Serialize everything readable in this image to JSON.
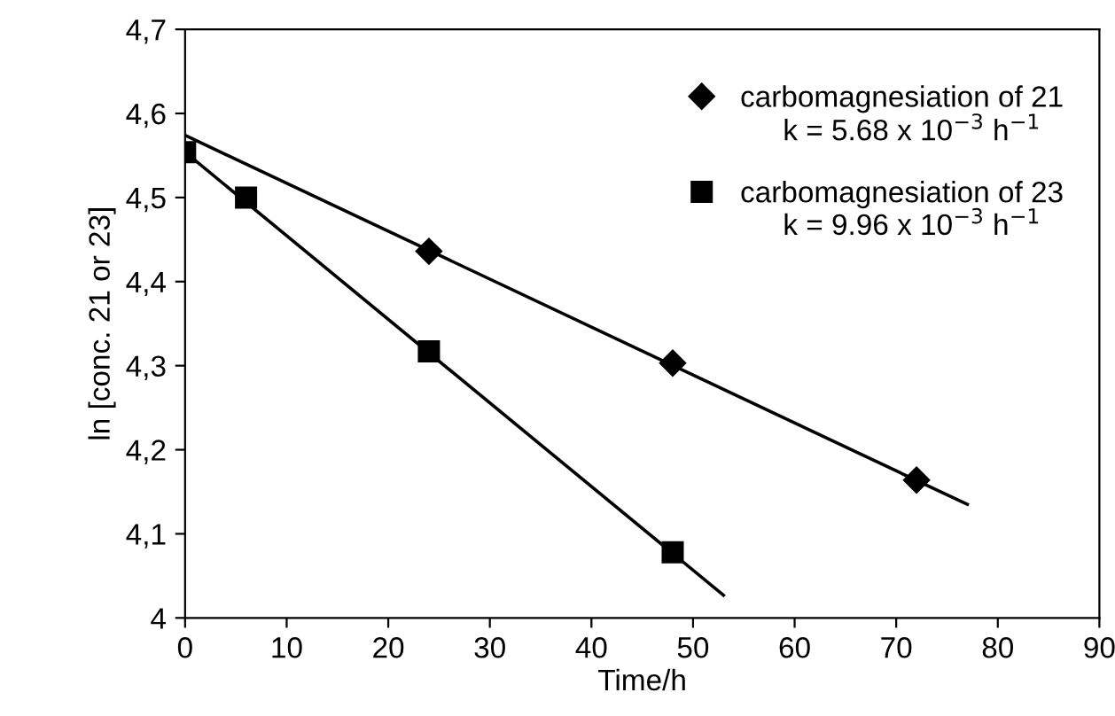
{
  "chart_data": {
    "type": "scatter",
    "xlabel": "Time/h",
    "ylabel": "ln [conc. 21 or 23]",
    "xlim": [
      0,
      90
    ],
    "xticks": [
      0,
      10,
      20,
      30,
      40,
      50,
      60,
      70,
      80,
      90
    ],
    "ylim": [
      4,
      4.7
    ],
    "yticks": [
      {
        "value": 4,
        "label": "4"
      },
      {
        "value": 4.1,
        "label": "4,1"
      },
      {
        "value": 4.2,
        "label": "4,2"
      },
      {
        "value": 4.3,
        "label": "4,3"
      },
      {
        "value": 4.4,
        "label": "4,4"
      },
      {
        "value": 4.5,
        "label": "4,5"
      },
      {
        "value": 4.6,
        "label": "4,6"
      },
      {
        "value": 4.7,
        "label": "4,7"
      }
    ],
    "grid": false,
    "legend": "top right",
    "series": [
      {
        "name": "carbomagnesiation of 21",
        "color": "#000000",
        "marker": "diamond",
        "x": [
          24,
          48,
          72
        ],
        "values": [
          4.436,
          4.303,
          4.164
        ]
      },
      {
        "name": "carbomagnesiation of 23",
        "color": "#000000",
        "marker": "square",
        "x": [
          0,
          6,
          24,
          48
        ],
        "values": [
          4.554,
          4.5,
          4.317,
          4.078
        ]
      },
      {
        "type": "line",
        "color": "#000000",
        "x": [
          0,
          77
        ],
        "values": [
          4.574,
          4.135
        ]
      },
      {
        "type": "line",
        "color": "#000000",
        "x": [
          0,
          53
        ],
        "values": [
          4.554,
          4.027
        ]
      }
    ],
    "annotations": [
      "k = 5.68 x 10$^{−3}$ h$^{−1}$",
      "k = 9.96 x 10$^{−3}$ h$^{−1}$"
    ]
  }
}
